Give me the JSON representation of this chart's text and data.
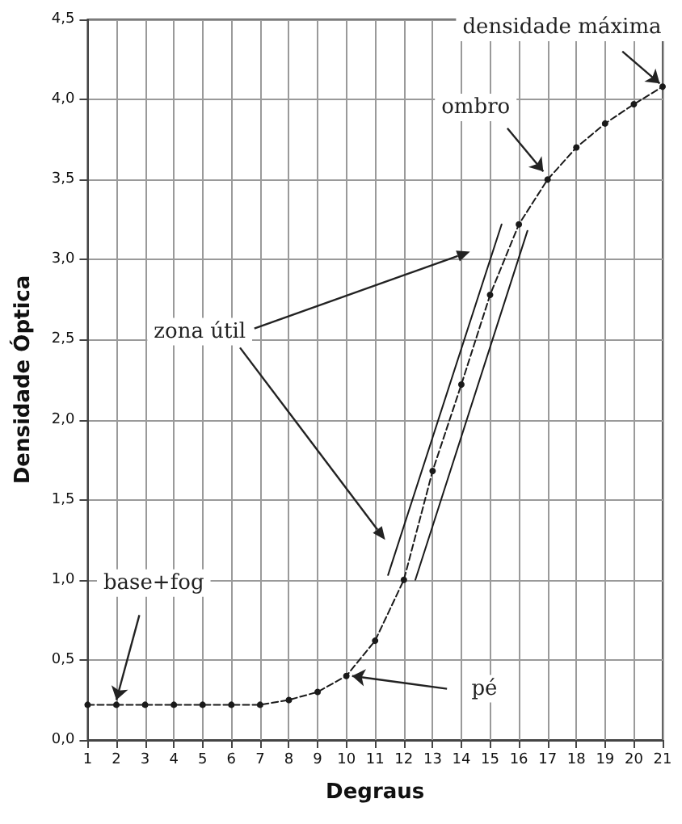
{
  "chart_data": {
    "type": "line",
    "xlabel": "Degraus",
    "ylabel": "Densidade Óptica",
    "x": [
      1,
      2,
      3,
      4,
      5,
      6,
      7,
      8,
      9,
      10,
      11,
      12,
      13,
      14,
      15,
      16,
      17,
      18,
      19,
      20,
      21
    ],
    "series": [
      {
        "color": "#1a1a1a",
        "values": [
          0.22,
          0.22,
          0.22,
          0.22,
          0.22,
          0.22,
          0.22,
          0.25,
          0.3,
          0.4,
          0.62,
          1.0,
          1.68,
          2.22,
          2.78,
          3.22,
          3.5,
          3.7,
          3.85,
          3.97,
          4.08
        ],
        "line_style": "dashed",
        "marker": "circle"
      },
      {
        "color": "#1a1a1a",
        "x": [
          11.45,
          15.4
        ],
        "values": [
          1.03,
          3.22
        ],
        "line_style": "solid",
        "marker": "none"
      },
      {
        "color": "#1a1a1a",
        "x": [
          12.4,
          16.3
        ],
        "values": [
          1.0,
          3.18
        ],
        "line_style": "solid",
        "marker": "none"
      }
    ],
    "xlim": [
      1,
      21
    ],
    "xticks": [
      1,
      2,
      3,
      4,
      5,
      6,
      7,
      8,
      9,
      10,
      11,
      12,
      13,
      14,
      15,
      16,
      17,
      18,
      19,
      20,
      21
    ],
    "ylim": [
      0,
      4.5
    ],
    "yticks": [
      {
        "value": 0,
        "label": "0,0"
      },
      {
        "value": 0.5,
        "label": "0,5"
      },
      {
        "value": 1,
        "label": "1,0"
      },
      {
        "value": 1.5,
        "label": "1,5"
      },
      {
        "value": 2,
        "label": "2,0"
      },
      {
        "value": 2.5,
        "label": "2,5"
      },
      {
        "value": 3,
        "label": "3,0"
      },
      {
        "value": 3.5,
        "label": "3,5"
      },
      {
        "value": 4,
        "label": "4,0"
      },
      {
        "value": 4.5,
        "label": "4,5"
      }
    ],
    "grid": true,
    "annotations": [
      {
        "text": "densidade máxima",
        "x": 21,
        "y": 4.08
      },
      {
        "text": "ombro",
        "x": 17,
        "y": 3.5
      },
      "zona útil",
      {
        "text": "base+fog",
        "x": 2,
        "y": 0.22
      },
      {
        "text": "pé",
        "x": 10,
        "y": 0.4
      }
    ]
  }
}
